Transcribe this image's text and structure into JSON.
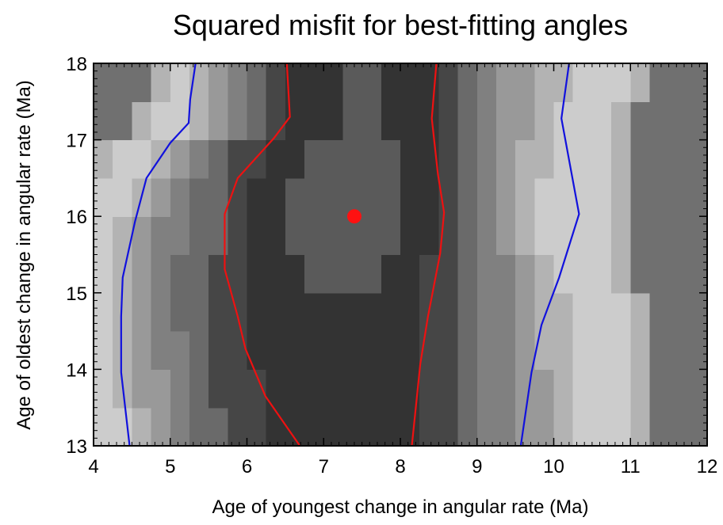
{
  "chart_data": {
    "type": "heatmap",
    "title": "Squared misfit for best-fitting angles",
    "xlabel": "Age of youngest change in angular rate (Ma)",
    "ylabel": "Age of oldest change in angular rate (Ma)",
    "xlim": [
      4,
      12
    ],
    "ylim": [
      13,
      18
    ],
    "xticks": [
      4,
      5,
      6,
      7,
      8,
      9,
      10,
      11,
      12
    ],
    "yticks": [
      13,
      14,
      15,
      16,
      17,
      18
    ],
    "minor_per_major": 10,
    "level_colors": [
      "#5a5a5a",
      "#333333",
      "#464646",
      "#6a6a6a",
      "#808080",
      "#999999",
      "#b3b3b3",
      "#cccccc",
      "#707070"
    ],
    "z": [
      [
        7,
        7,
        6,
        5,
        4,
        3,
        3,
        2,
        2,
        1,
        1,
        1,
        1,
        1,
        1,
        1,
        1,
        2,
        2,
        3,
        4,
        4,
        5,
        5,
        6,
        7,
        7,
        7,
        6,
        8,
        8,
        8
      ],
      [
        7,
        6,
        5,
        5,
        4,
        3,
        2,
        2,
        2,
        1,
        1,
        1,
        1,
        1,
        1,
        1,
        1,
        2,
        2,
        3,
        4,
        4,
        5,
        5,
        6,
        7,
        7,
        7,
        6,
        8,
        8,
        8
      ],
      [
        7,
        6,
        5,
        4,
        4,
        3,
        2,
        2,
        1,
        1,
        1,
        1,
        1,
        1,
        1,
        1,
        1,
        2,
        2,
        3,
        4,
        4,
        5,
        6,
        6,
        7,
        7,
        7,
        6,
        8,
        8,
        8
      ],
      [
        7,
        6,
        5,
        4,
        3,
        3,
        2,
        2,
        1,
        1,
        1,
        1,
        1,
        1,
        1,
        1,
        1,
        2,
        2,
        3,
        4,
        4,
        5,
        6,
        6,
        7,
        7,
        7,
        6,
        8,
        8,
        8
      ],
      [
        7,
        6,
        5,
        4,
        3,
        3,
        2,
        2,
        1,
        1,
        1,
        0,
        0,
        0,
        0,
        1,
        1,
        2,
        2,
        3,
        4,
        4,
        5,
        6,
        7,
        7,
        7,
        6,
        8,
        8,
        8,
        8
      ],
      [
        7,
        6,
        5,
        4,
        4,
        3,
        3,
        2,
        1,
        1,
        0,
        0,
        0,
        0,
        0,
        0,
        1,
        1,
        2,
        3,
        4,
        5,
        6,
        7,
        7,
        7,
        7,
        6,
        8,
        8,
        8,
        8
      ],
      [
        7,
        7,
        6,
        5,
        4,
        3,
        3,
        2,
        1,
        1,
        0,
        0,
        0,
        0,
        0,
        0,
        1,
        1,
        2,
        3,
        4,
        5,
        6,
        7,
        7,
        7,
        7,
        6,
        8,
        8,
        8,
        8
      ],
      [
        6,
        7,
        7,
        6,
        5,
        4,
        3,
        2,
        2,
        1,
        1,
        0,
        0,
        0,
        0,
        0,
        1,
        1,
        2,
        3,
        4,
        5,
        6,
        6,
        7,
        7,
        7,
        6,
        8,
        8,
        8,
        8
      ],
      [
        8,
        8,
        6,
        7,
        7,
        6,
        5,
        4,
        3,
        2,
        1,
        1,
        1,
        0,
        0,
        1,
        1,
        1,
        2,
        3,
        4,
        5,
        5,
        6,
        7,
        7,
        7,
        6,
        8,
        8,
        8,
        8
      ],
      [
        8,
        8,
        8,
        6,
        7,
        6,
        5,
        4,
        3,
        2,
        1,
        1,
        1,
        0,
        0,
        1,
        1,
        1,
        2,
        3,
        4,
        5,
        5,
        6,
        6,
        7,
        7,
        7,
        6,
        8,
        8,
        8
      ]
    ],
    "contours": [
      {
        "color": "#ee1111",
        "x": [
          6.52,
          6.56,
          6.35,
          5.88,
          5.71,
          5.71,
          5.88,
          5.98,
          6.24,
          6.69
        ],
        "y": [
          18,
          17.3,
          17.02,
          16.5,
          16.03,
          15.31,
          14.69,
          14.27,
          13.65,
          13
        ]
      },
      {
        "color": "#ee1111",
        "x": [
          8.47,
          8.41,
          8.49,
          8.57,
          8.52,
          8.36,
          8.26,
          8.15
        ],
        "y": [
          18,
          17.28,
          16.55,
          16.05,
          15.52,
          14.69,
          14.07,
          13
        ]
      },
      {
        "color": "#1111dd",
        "x": [
          5.33,
          5.26,
          5.24,
          5.0,
          4.69,
          4.54,
          4.38,
          4.36,
          4.36,
          4.47
        ],
        "y": [
          18,
          17.53,
          17.22,
          16.96,
          16.5,
          15.93,
          15.2,
          14.69,
          13.96,
          13
        ]
      },
      {
        "color": "#1111dd",
        "x": [
          10.2,
          10.1,
          10.33,
          10.07,
          9.84,
          9.71,
          9.57
        ],
        "y": [
          18,
          17.28,
          16.03,
          15.2,
          14.58,
          13.96,
          13
        ]
      }
    ],
    "marker": {
      "x": 7.4,
      "y": 16,
      "color": "#ff1111"
    }
  }
}
